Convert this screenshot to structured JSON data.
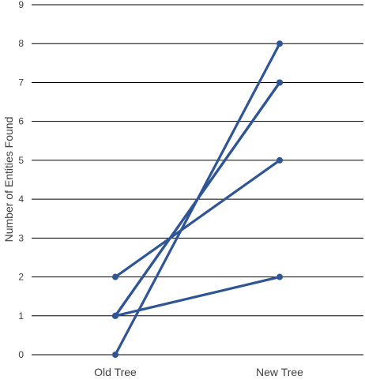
{
  "chart_data": {
    "type": "line",
    "categories": [
      "Old Tree",
      "New Tree"
    ],
    "series": [
      {
        "values": [
          0,
          8
        ]
      },
      {
        "values": [
          1,
          7
        ]
      },
      {
        "values": [
          1,
          7
        ]
      },
      {
        "values": [
          2,
          5
        ]
      },
      {
        "values": [
          1,
          2
        ]
      }
    ],
    "title": "",
    "xlabel": "",
    "ylabel": "Number of Entities Found",
    "ylim": [
      0,
      9
    ],
    "yticks": [
      0,
      1,
      2,
      3,
      4,
      5,
      6,
      7,
      8,
      9
    ],
    "grid": "horizontal",
    "colors": {
      "series": "#2f5597",
      "grid": "#000000",
      "text": "#404040"
    }
  }
}
